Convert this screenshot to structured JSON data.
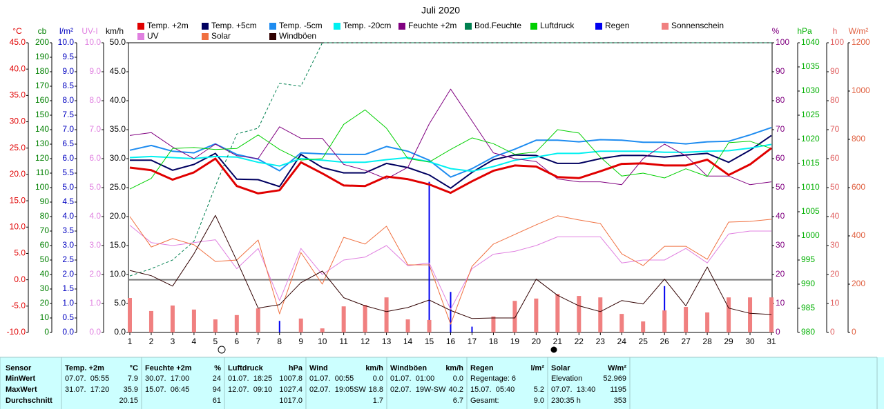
{
  "chart_data": {
    "type": "line",
    "title": "Juli 2020",
    "x": [
      1,
      2,
      3,
      4,
      5,
      6,
      7,
      8,
      9,
      10,
      11,
      12,
      13,
      14,
      15,
      16,
      17,
      18,
      19,
      20,
      21,
      22,
      23,
      24,
      25,
      26,
      27,
      28,
      29,
      30,
      31
    ],
    "xlim": [
      1,
      31
    ],
    "axes": {
      "c": {
        "label": "°C",
        "side": "left",
        "color": "#e00000",
        "lim": [
          -10,
          45
        ],
        "ticks": [
          {
            "value": -10,
            "label": "-10.0"
          },
          {
            "value": -5,
            "label": "-5.0"
          },
          {
            "value": 0,
            "label": "0.0"
          },
          {
            "value": 5,
            "label": "5.0"
          },
          {
            "value": 10,
            "label": "10.0"
          },
          {
            "value": 15,
            "label": "15.0"
          },
          {
            "value": 20,
            "label": "20.0"
          },
          {
            "value": 25,
            "label": "25.0"
          },
          {
            "value": 30,
            "label": "30.0"
          },
          {
            "value": 35,
            "label": "35.0"
          },
          {
            "value": 40,
            "label": "40.0"
          },
          {
            "value": 45,
            "label": "45.0"
          }
        ]
      },
      "cb": {
        "label": "cb",
        "side": "left",
        "color": "#008000",
        "lim": [
          0,
          200
        ],
        "ticks": [
          0,
          10,
          20,
          30,
          40,
          50,
          60,
          70,
          80,
          90,
          100,
          110,
          120,
          130,
          140,
          150,
          160,
          170,
          180,
          190,
          200
        ]
      },
      "l": {
        "label": "l/m²",
        "side": "left",
        "color": "#0000c0",
        "lim": [
          0,
          10
        ],
        "ticks": [
          {
            "value": 0,
            "label": "0.0"
          },
          {
            "value": 0.5,
            "label": "0.5"
          },
          {
            "value": 1,
            "label": "1.0"
          },
          {
            "value": 1.5,
            "label": "1.5"
          },
          {
            "value": 2,
            "label": "2.0"
          },
          {
            "value": 2.5,
            "label": "2.5"
          },
          {
            "value": 3,
            "label": "3.0"
          },
          {
            "value": 3.5,
            "label": "3.5"
          },
          {
            "value": 4,
            "label": "4.0"
          },
          {
            "value": 4.5,
            "label": "4.5"
          },
          {
            "value": 5,
            "label": "5.0"
          },
          {
            "value": 5.5,
            "label": "5.5"
          },
          {
            "value": 6,
            "label": "6.0"
          },
          {
            "value": 6.5,
            "label": "6.5"
          },
          {
            "value": 7,
            "label": "7.0"
          },
          {
            "value": 7.5,
            "label": "7.5"
          },
          {
            "value": 8,
            "label": "8.0"
          },
          {
            "value": 8.5,
            "label": "8.5"
          },
          {
            "value": 9,
            "label": "9.0"
          },
          {
            "value": 9.5,
            "label": "9.5"
          },
          {
            "value": 10,
            "label": "10.0"
          }
        ]
      },
      "uv": {
        "label": "UV-I",
        "side": "left",
        "color": "#e080e0",
        "lim": [
          0,
          10
        ],
        "ticks": [
          {
            "value": 0,
            "label": "0.0"
          },
          {
            "value": 1,
            "label": "1.0"
          },
          {
            "value": 2,
            "label": "2.0"
          },
          {
            "value": 3,
            "label": "3.0"
          },
          {
            "value": 4,
            "label": "4.0"
          },
          {
            "value": 5,
            "label": "5.0"
          },
          {
            "value": 6,
            "label": "6.0"
          },
          {
            "value": 7,
            "label": "7.0"
          },
          {
            "value": 8,
            "label": "8.0"
          },
          {
            "value": 9,
            "label": "9.0"
          },
          {
            "value": 10,
            "label": "10.0"
          }
        ]
      },
      "kmh": {
        "label": "km/h",
        "side": "left",
        "color": "#000000",
        "lim": [
          0,
          50
        ],
        "ticks": [
          {
            "value": 0,
            "label": "0.0"
          },
          {
            "value": 5,
            "label": "5.0"
          },
          {
            "value": 10,
            "label": "10.0"
          },
          {
            "value": 15,
            "label": "15.0"
          },
          {
            "value": 20,
            "label": "20.0"
          },
          {
            "value": 25,
            "label": "25.0"
          },
          {
            "value": 30,
            "label": "30.0"
          },
          {
            "value": 35,
            "label": "35.0"
          },
          {
            "value": 40,
            "label": "40.0"
          },
          {
            "value": 45,
            "label": "45.0"
          },
          {
            "value": 50,
            "label": "50.0"
          }
        ]
      },
      "pct": {
        "label": "%",
        "side": "right",
        "color": "#800080",
        "lim": [
          0,
          100
        ],
        "ticks": [
          0,
          10,
          20,
          30,
          40,
          50,
          60,
          70,
          80,
          90,
          100
        ]
      },
      "hpa": {
        "label": "hPa",
        "side": "right",
        "color": "#00b000",
        "lim": [
          980,
          1040
        ],
        "ticks": [
          980,
          985,
          990,
          995,
          1000,
          1005,
          1010,
          1015,
          1020,
          1025,
          1030,
          1035,
          1040
        ]
      },
      "h": {
        "label": "h",
        "side": "right",
        "color": "#e06060",
        "lim": [
          0,
          100
        ],
        "ticks": [
          0,
          10,
          20,
          30,
          40,
          50,
          60,
          70,
          80,
          90,
          100
        ]
      },
      "w": {
        "label": "W/m²",
        "side": "right",
        "color": "#e06040",
        "lim": [
          0,
          1200
        ],
        "ticks": [
          0,
          200,
          400,
          600,
          800,
          1000,
          1200
        ]
      }
    },
    "series": [
      {
        "name": "Temp. +2m",
        "color": "#e00000",
        "axis": "c",
        "values": [
          21.3,
          20.8,
          19.0,
          20.4,
          23.0,
          17.8,
          16.4,
          17.0,
          22.3,
          20.2,
          17.9,
          17.8,
          19.6,
          19.1,
          18.1,
          16.5,
          18.7,
          20.7,
          21.7,
          21.5,
          19.5,
          19.3,
          20.6,
          22.0,
          22.1,
          21.7,
          21.7,
          22.8,
          19.9,
          21.9,
          25.0
        ]
      },
      {
        "name": "Temp. +5cm",
        "color": "#000060",
        "axis": "c",
        "values": [
          22.7,
          22.7,
          20.8,
          21.9,
          24.0,
          19.1,
          19.0,
          17.7,
          23.8,
          21.3,
          20.3,
          20.3,
          22.1,
          21.3,
          19.9,
          17.4,
          20.4,
          22.8,
          23.7,
          23.6,
          22.1,
          22.1,
          23.0,
          23.6,
          23.6,
          23.3,
          23.7,
          24.0,
          22.3,
          24.6,
          27.4
        ]
      },
      {
        "name": "Temp. -5cm",
        "color": "#1e8cf0",
        "axis": "c",
        "values": [
          24.6,
          25.5,
          24.4,
          24.1,
          25.8,
          23.8,
          22.9,
          20.7,
          24.1,
          23.9,
          23.8,
          23.8,
          25.3,
          24.4,
          22.7,
          19.5,
          21.1,
          23.3,
          24.8,
          26.5,
          26.5,
          26.2,
          26.6,
          26.5,
          26.1,
          26.1,
          25.8,
          26.2,
          26.3,
          27.5,
          28.9
        ]
      },
      {
        "name": "Temp. -20cm",
        "color": "#00f0f0",
        "axis": "c",
        "values": [
          23.2,
          23.4,
          23.2,
          23.0,
          23.4,
          23.3,
          22.3,
          21.6,
          23.0,
          22.7,
          22.3,
          22.3,
          22.8,
          23.2,
          22.4,
          21.1,
          20.6,
          21.5,
          22.7,
          23.3,
          24.0,
          24.0,
          24.4,
          24.4,
          24.4,
          24.2,
          24.2,
          24.4,
          24.5,
          25.0,
          25.7
        ]
      },
      {
        "name": "Feuchte +2m",
        "color": "#800080",
        "axis": "pct",
        "values": [
          68,
          69,
          64,
          60,
          65,
          61,
          60,
          71,
          67,
          67,
          58,
          56,
          53,
          57,
          72,
          84,
          73,
          62,
          60,
          59,
          53,
          52,
          52,
          51,
          60,
          65,
          61,
          54,
          54,
          51,
          52
        ]
      },
      {
        "name": "Bod.Feuchte",
        "color": "#008050",
        "axis": "cb",
        "dashed": true,
        "values": [
          39,
          44,
          50,
          63,
          101,
          137,
          141,
          172,
          170,
          200,
          200,
          200,
          200,
          200,
          200,
          200,
          200,
          200,
          200,
          200,
          200,
          200,
          200,
          200,
          200,
          200,
          200,
          200,
          200,
          200,
          200
        ]
      },
      {
        "name": "Luftdruck",
        "color": "#00d000",
        "axis": "hpa",
        "values": [
          1009.7,
          1011.9,
          1018.1,
          1018.3,
          1017.9,
          1018.1,
          1020.9,
          1017.9,
          1015.7,
          1016.0,
          1023.1,
          1026.1,
          1022.3,
          1016.0,
          1015.3,
          1017.9,
          1020.3,
          1019.1,
          1016.9,
          1017.4,
          1022.0,
          1021.3,
          1016.3,
          1012.4,
          1013.0,
          1012.0,
          1013.9,
          1012.3,
          1019.3,
          1019.6,
          1018.1
        ]
      },
      {
        "name": "Regen",
        "color": "#0000f0",
        "axis": "l",
        "type": "bar",
        "values": [
          0,
          0.2,
          0,
          0,
          0,
          0,
          0,
          0.4,
          0,
          0,
          0,
          0,
          0,
          0,
          5.2,
          1.4,
          0.2,
          0,
          0,
          0,
          0,
          0,
          0,
          0,
          0,
          1.6,
          0,
          0,
          0,
          0,
          0
        ]
      },
      {
        "name": "Sonnenschein",
        "color": "#f08080",
        "axis": "h",
        "type": "bar",
        "values": [
          11.9,
          7.4,
          9.3,
          7.9,
          4.5,
          6.0,
          8.3,
          0,
          4.8,
          1.4,
          9.0,
          9.5,
          12.1,
          4.5,
          4.3,
          0,
          0,
          5.5,
          10.9,
          11.7,
          13.3,
          12.6,
          12.1,
          6.4,
          3.8,
          7.6,
          8.8,
          6.9,
          12.1,
          12.1,
          12.1
        ]
      },
      {
        "name": "UV",
        "color": "#e080e0",
        "axis": "uv",
        "values": [
          3.7,
          3.1,
          3.0,
          3.1,
          3.2,
          2.2,
          2.9,
          1.1,
          2.9,
          2.0,
          2.5,
          2.6,
          3.0,
          2.3,
          2.4,
          0.8,
          2.2,
          2.7,
          2.8,
          3.0,
          3.3,
          3.3,
          3.3,
          2.4,
          2.5,
          2.5,
          2.9,
          2.4,
          3.4,
          3.5,
          3.5
        ]
      },
      {
        "name": "Solar",
        "color": "#f07040",
        "axis": "w",
        "values": [
          480,
          354,
          389,
          363,
          294,
          300,
          383,
          77,
          331,
          200,
          394,
          366,
          440,
          280,
          280,
          34,
          274,
          366,
          406,
          446,
          483,
          466,
          451,
          326,
          277,
          357,
          357,
          303,
          457,
          460,
          469
        ]
      },
      {
        "name": "Windböen",
        "color": "#300000",
        "axis": "kmh",
        "values": [
          10.7,
          9.8,
          8.0,
          13.6,
          20.2,
          12.4,
          4.2,
          4.8,
          8.6,
          10.6,
          6.0,
          4.6,
          3.6,
          4.3,
          5.6,
          3.8,
          2.4,
          2.5,
          2.5,
          9.2,
          6.4,
          4.6,
          3.6,
          5.5,
          4.9,
          9.2,
          4.6,
          11.3,
          4.2,
          3.3,
          3.1
        ]
      }
    ]
  },
  "stats": {
    "labels": [
      "Sensor",
      "MinWert",
      "MaxWert",
      "Durchschnitt"
    ],
    "columns": [
      {
        "title": "Temp. +2m",
        "unit": "°C",
        "rows": [
          {
            "left": "07.07.  05:55",
            "right": "7.9"
          },
          {
            "left": "31.07.  17:20",
            "right": "35.9"
          },
          {
            "right": "20.15"
          }
        ]
      },
      {
        "title": "Feuchte +2m",
        "unit": "%",
        "rows": [
          {
            "left": "30.07.  17:00",
            "right": "24"
          },
          {
            "left": "15.07.  06:45",
            "right": "94"
          },
          {
            "right": "61"
          }
        ]
      },
      {
        "title": "Luftdruck",
        "unit": "hPa",
        "rows": [
          {
            "left": "01.07.  18:25",
            "right": "1007.8"
          },
          {
            "left": "12.07.  09:10",
            "right": "1027.4"
          },
          {
            "right": "1017.0"
          }
        ]
      },
      {
        "title": "Wind",
        "unit": "km/h",
        "rows": [
          {
            "left": "01.07.  00:55",
            "right": "0.0"
          },
          {
            "left": "02.07.  19:05SW",
            "right": "18.8"
          },
          {
            "right": "1.7"
          }
        ]
      },
      {
        "title": "Windböen",
        "unit": "km/h",
        "rows": [
          {
            "left": "01.07.  01:00",
            "right": "0.0"
          },
          {
            "left": "02.07.  19W-SW",
            "right": "40.2"
          },
          {
            "right": "6.7"
          }
        ]
      },
      {
        "title": "Regen",
        "unit": "l/m²",
        "rows": [
          {
            "left": "Regentage: 6"
          },
          {
            "left": "15.07.  05:40",
            "right": "5.2"
          },
          {
            "left": "Gesamt:",
            "right": "9.0"
          }
        ]
      },
      {
        "title": "Solar",
        "unit": "W/m²",
        "rows": [
          {
            "left": "Elevation",
            "right": "52.969"
          },
          {
            "left": "07.07.  13:40",
            "right": "1195"
          },
          {
            "left": "230:35 h",
            "right": "353"
          }
        ]
      }
    ]
  }
}
